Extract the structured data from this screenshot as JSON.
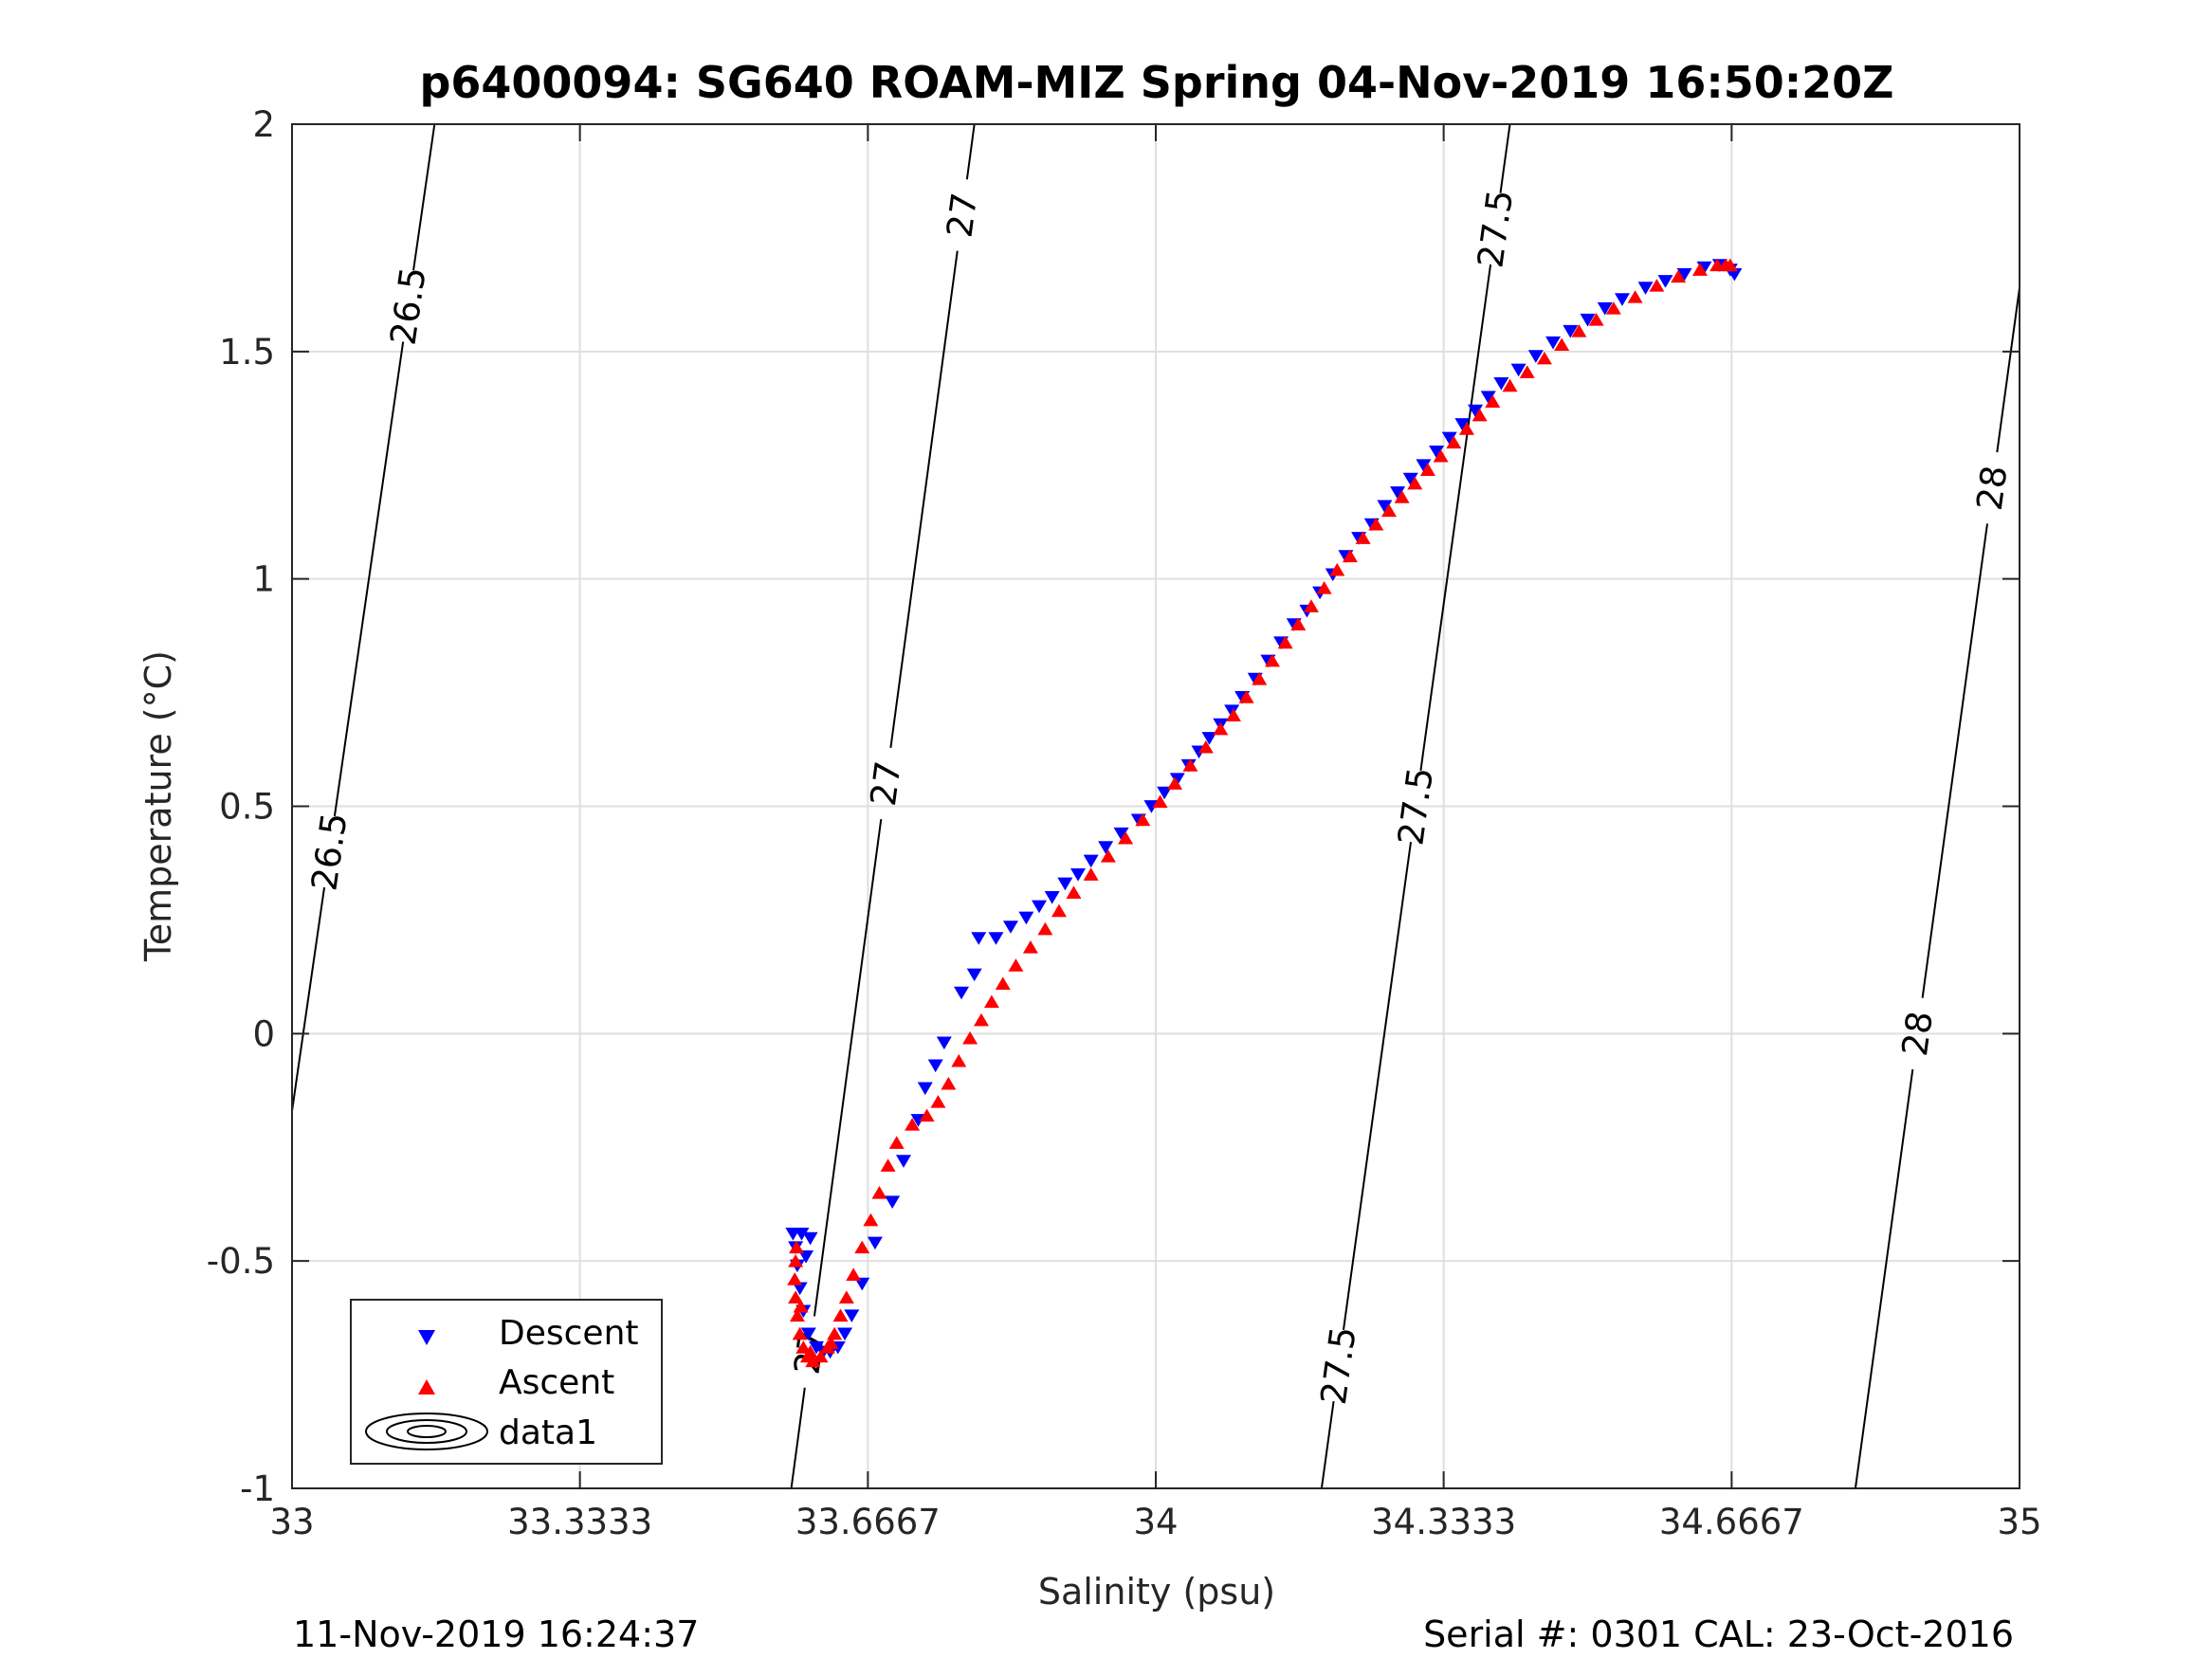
{
  "chart_data": {
    "type": "scatter",
    "title": "p6400094: SG640 ROAM-MIZ Spring 04-Nov-2019 16:50:20Z",
    "xlabel": "Salinity (psu)",
    "ylabel": "Temperature (°C)",
    "xlim": [
      33,
      35
    ],
    "ylim": [
      -1,
      2
    ],
    "grid": true,
    "x_ticks": [
      "33",
      "33.3333",
      "33.6667",
      "34",
      "34.3333",
      "34.6667",
      "35"
    ],
    "y_ticks": [
      "2",
      "1.5",
      "1",
      "0.5",
      "0",
      "-0.5",
      "-1"
    ],
    "legend": {
      "position": "bottom-left",
      "entries": [
        "Descent",
        "Ascent",
        "data1"
      ]
    },
    "series": [
      {
        "name": "Descent",
        "marker": "triangle-down",
        "color": "#0000ff",
        "points": [
          [
            34.653,
            1.69
          ],
          [
            34.635,
            1.685
          ],
          [
            34.612,
            1.67
          ],
          [
            34.59,
            1.655
          ],
          [
            34.567,
            1.64
          ],
          [
            34.54,
            1.615
          ],
          [
            34.52,
            1.595
          ],
          [
            34.5,
            1.57
          ],
          [
            34.48,
            1.545
          ],
          [
            34.46,
            1.52
          ],
          [
            34.44,
            1.49
          ],
          [
            34.42,
            1.46
          ],
          [
            34.4,
            1.43
          ],
          [
            34.385,
            1.4
          ],
          [
            34.37,
            1.37
          ],
          [
            34.355,
            1.34
          ],
          [
            34.34,
            1.31
          ],
          [
            34.325,
            1.28
          ],
          [
            34.31,
            1.25
          ],
          [
            34.295,
            1.22
          ],
          [
            34.28,
            1.19
          ],
          [
            34.265,
            1.16
          ],
          [
            34.25,
            1.12
          ],
          [
            34.235,
            1.09
          ],
          [
            34.22,
            1.05
          ],
          [
            34.205,
            1.01
          ],
          [
            34.19,
            0.97
          ],
          [
            34.175,
            0.93
          ],
          [
            34.16,
            0.9
          ],
          [
            34.145,
            0.86
          ],
          [
            34.13,
            0.82
          ],
          [
            34.115,
            0.78
          ],
          [
            34.1,
            0.74
          ],
          [
            34.088,
            0.71
          ],
          [
            34.075,
            0.68
          ],
          [
            34.062,
            0.65
          ],
          [
            34.05,
            0.62
          ],
          [
            34.038,
            0.59
          ],
          [
            34.025,
            0.56
          ],
          [
            34.01,
            0.53
          ],
          [
            33.995,
            0.5
          ],
          [
            33.98,
            0.47
          ],
          [
            33.96,
            0.44
          ],
          [
            33.942,
            0.41
          ],
          [
            33.925,
            0.38
          ],
          [
            33.91,
            0.35
          ],
          [
            33.895,
            0.33
          ],
          [
            33.88,
            0.3
          ],
          [
            33.865,
            0.28
          ],
          [
            33.85,
            0.255
          ],
          [
            33.832,
            0.235
          ],
          [
            33.815,
            0.21
          ],
          [
            33.795,
            0.21
          ],
          [
            33.79,
            0.13
          ],
          [
            33.775,
            0.09
          ],
          [
            33.755,
            -0.02
          ],
          [
            33.745,
            -0.07
          ],
          [
            33.733,
            -0.12
          ],
          [
            33.725,
            -0.19
          ],
          [
            33.708,
            -0.28
          ],
          [
            33.695,
            -0.37
          ],
          [
            33.675,
            -0.46
          ],
          [
            33.66,
            -0.55
          ],
          [
            33.648,
            -0.62
          ],
          [
            33.64,
            -0.66
          ],
          [
            33.632,
            -0.69
          ],
          [
            33.623,
            -0.7
          ],
          [
            33.615,
            -0.7
          ],
          [
            33.607,
            -0.69
          ],
          [
            33.598,
            -0.66
          ],
          [
            33.592,
            -0.61
          ],
          [
            33.588,
            -0.56
          ],
          [
            33.585,
            -0.51
          ],
          [
            33.583,
            -0.47
          ],
          [
            33.58,
            -0.44
          ],
          [
            33.59,
            -0.44
          ],
          [
            33.6,
            -0.45
          ],
          [
            33.595,
            -0.49
          ],
          [
            34.665,
            1.68
          ],
          [
            34.67,
            1.67
          ]
        ]
      },
      {
        "name": "Ascent",
        "marker": "triangle-up",
        "color": "#ff0000",
        "points": [
          [
            34.665,
            1.69
          ],
          [
            34.65,
            1.69
          ],
          [
            34.63,
            1.68
          ],
          [
            34.605,
            1.665
          ],
          [
            34.58,
            1.645
          ],
          [
            34.555,
            1.62
          ],
          [
            34.53,
            1.595
          ],
          [
            34.51,
            1.57
          ],
          [
            34.49,
            1.545
          ],
          [
            34.47,
            1.515
          ],
          [
            34.45,
            1.485
          ],
          [
            34.43,
            1.455
          ],
          [
            34.41,
            1.425
          ],
          [
            34.39,
            1.39
          ],
          [
            34.375,
            1.36
          ],
          [
            34.36,
            1.33
          ],
          [
            34.345,
            1.3
          ],
          [
            34.33,
            1.27
          ],
          [
            34.315,
            1.24
          ],
          [
            34.3,
            1.21
          ],
          [
            34.285,
            1.18
          ],
          [
            34.27,
            1.15
          ],
          [
            34.255,
            1.12
          ],
          [
            34.24,
            1.09
          ],
          [
            34.225,
            1.05
          ],
          [
            34.21,
            1.02
          ],
          [
            34.195,
            0.98
          ],
          [
            34.18,
            0.94
          ],
          [
            34.165,
            0.9
          ],
          [
            34.15,
            0.86
          ],
          [
            34.135,
            0.82
          ],
          [
            34.12,
            0.78
          ],
          [
            34.105,
            0.74
          ],
          [
            34.09,
            0.7
          ],
          [
            34.075,
            0.67
          ],
          [
            34.058,
            0.63
          ],
          [
            34.04,
            0.59
          ],
          [
            34.022,
            0.55
          ],
          [
            34.005,
            0.51
          ],
          [
            33.985,
            0.47
          ],
          [
            33.965,
            0.43
          ],
          [
            33.945,
            0.39
          ],
          [
            33.925,
            0.35
          ],
          [
            33.905,
            0.31
          ],
          [
            33.888,
            0.27
          ],
          [
            33.872,
            0.23
          ],
          [
            33.855,
            0.19
          ],
          [
            33.838,
            0.15
          ],
          [
            33.823,
            0.11
          ],
          [
            33.81,
            0.07
          ],
          [
            33.798,
            0.03
          ],
          [
            33.785,
            -0.01
          ],
          [
            33.772,
            -0.06
          ],
          [
            33.76,
            -0.11
          ],
          [
            33.748,
            -0.15
          ],
          [
            33.735,
            -0.18
          ],
          [
            33.718,
            -0.2
          ],
          [
            33.7,
            -0.24
          ],
          [
            33.69,
            -0.29
          ],
          [
            33.68,
            -0.35
          ],
          [
            33.67,
            -0.41
          ],
          [
            33.66,
            -0.47
          ],
          [
            33.65,
            -0.53
          ],
          [
            33.642,
            -0.58
          ],
          [
            33.635,
            -0.62
          ],
          [
            33.628,
            -0.66
          ],
          [
            33.62,
            -0.69
          ],
          [
            33.612,
            -0.71
          ],
          [
            33.603,
            -0.72
          ],
          [
            33.597,
            -0.71
          ],
          [
            33.592,
            -0.69
          ],
          [
            33.588,
            -0.66
          ],
          [
            33.585,
            -0.62
          ],
          [
            33.583,
            -0.58
          ],
          [
            33.582,
            -0.54
          ],
          [
            33.583,
            -0.5
          ],
          [
            33.584,
            -0.47
          ],
          [
            33.589,
            -0.6
          ],
          [
            33.6,
            -0.7
          ],
          [
            33.624,
            -0.68
          ],
          [
            34.66,
            1.69
          ]
        ]
      }
    ],
    "contours": [
      {
        "level": "26.5",
        "line": [
          [
            33.0,
            -0.17
          ],
          [
            33.165,
            2.0
          ]
        ],
        "labels": [
          "26.5",
          "26.5"
        ],
        "label_y": [
          1.6,
          0.4
        ]
      },
      {
        "level": "27",
        "line": [
          [
            33.578,
            -1.0
          ],
          [
            33.79,
            2.0
          ]
        ],
        "labels": [
          "27",
          "27",
          "27"
        ],
        "label_y": [
          1.8,
          0.55,
          -0.7
        ]
      },
      {
        "level": "27.5",
        "line": [
          [
            34.192,
            -1.0
          ],
          [
            34.41,
            2.0
          ]
        ],
        "labels": [
          "27.5",
          "27.5",
          "27.5"
        ],
        "label_y": [
          1.77,
          0.5,
          -0.73
        ]
      },
      {
        "level": "28",
        "line": [
          [
            34.81,
            -1.0
          ],
          [
            35.0,
            1.64
          ]
        ],
        "labels": [
          "28",
          "28"
        ],
        "label_y": [
          1.2,
          0.0
        ]
      }
    ]
  },
  "footer": {
    "left": "11-Nov-2019 16:24:37",
    "right": "Serial #: 0301  CAL: 23-Oct-2016"
  }
}
